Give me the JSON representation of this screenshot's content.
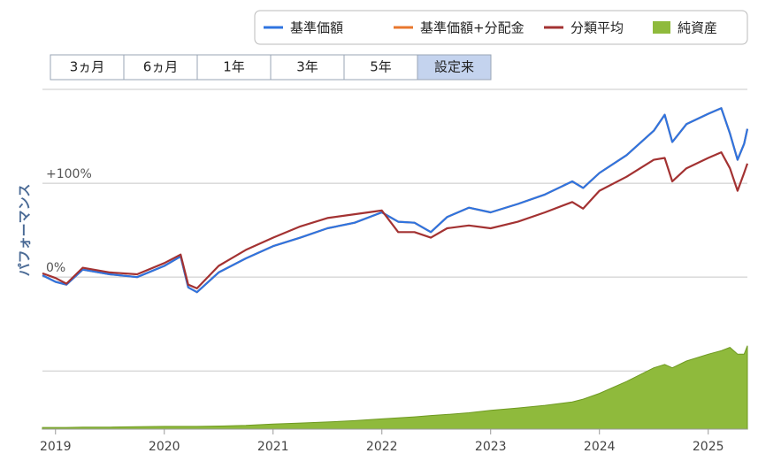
{
  "chart_data": {
    "type": "line",
    "y_axis_label": "パフォーマンス",
    "range_buttons": [
      "3ヵ月",
      "6ヵ月",
      "1年",
      "3年",
      "5年",
      "設定来"
    ],
    "selected_range_index": 5,
    "x": [
      2018.88,
      2019.0,
      2019.1,
      2019.25,
      2019.5,
      2019.75,
      2020.0,
      2020.15,
      2020.22,
      2020.3,
      2020.5,
      2020.75,
      2021.0,
      2021.25,
      2021.5,
      2021.75,
      2022.0,
      2022.15,
      2022.3,
      2022.45,
      2022.6,
      2022.8,
      2023.0,
      2023.25,
      2023.5,
      2023.75,
      2023.85,
      2024.0,
      2024.25,
      2024.5,
      2024.6,
      2024.67,
      2024.8,
      2025.0,
      2025.12,
      2025.2,
      2025.27,
      2025.33,
      2025.36
    ],
    "xlim": [
      2018.88,
      2025.36
    ],
    "xticks": [
      2019,
      2020,
      2021,
      2022,
      2023,
      2024,
      2025
    ],
    "ylim": [
      -162,
      201
    ],
    "yticks": [
      {
        "value": -100,
        "label": null
      },
      {
        "value": 0,
        "label": "0%"
      },
      {
        "value": 100,
        "label": "+100%"
      },
      {
        "value": 200,
        "label": null
      }
    ],
    "y2lim": [
      0,
      100
    ],
    "grid": true,
    "legend": "top-right",
    "series": [
      {
        "name": "基準価額+分配金",
        "color": "#e8772e",
        "type": "line",
        "values": [
          2,
          -5,
          -8,
          8,
          3,
          0,
          12,
          22,
          -11,
          -16,
          5,
          20,
          33,
          42,
          52,
          58,
          69,
          59,
          58,
          48,
          64,
          74,
          69,
          78,
          88,
          102,
          95,
          111,
          130,
          156,
          173,
          144,
          163,
          174,
          180,
          153,
          125,
          142,
          158
        ]
      },
      {
        "name": "基準価額",
        "color": "#2f74e0",
        "type": "line",
        "values": [
          2,
          -5,
          -8,
          8,
          3,
          0,
          12,
          22,
          -11,
          -16,
          5,
          20,
          33,
          42,
          52,
          58,
          69,
          59,
          58,
          48,
          64,
          74,
          69,
          78,
          88,
          102,
          95,
          111,
          130,
          156,
          173,
          144,
          163,
          174,
          180,
          153,
          125,
          142,
          158
        ]
      },
      {
        "name": "分類平均",
        "color": "#a33232",
        "type": "line",
        "values": [
          4,
          -1,
          -7,
          10,
          5,
          3,
          15,
          24,
          -8,
          -12,
          12,
          29,
          42,
          54,
          63,
          67,
          71,
          48,
          48,
          42,
          52,
          55,
          52,
          59,
          69,
          80,
          73,
          92,
          107,
          125,
          127,
          102,
          116,
          127,
          133,
          116,
          92,
          111,
          121
        ]
      },
      {
        "name": "純資産",
        "color": "#8fba3c",
        "type": "area",
        "axis": "y2",
        "values": [
          0.5,
          0.5,
          0.5,
          0.6,
          0.6,
          0.7,
          0.8,
          0.8,
          0.8,
          0.8,
          0.9,
          1.1,
          1.5,
          1.8,
          2.1,
          2.5,
          3,
          3.3,
          3.6,
          4,
          4.3,
          4.8,
          5.5,
          6.2,
          7,
          8,
          8.8,
          10.5,
          14,
          18,
          19,
          18,
          20,
          22,
          23,
          24,
          22,
          22,
          24.5
        ]
      }
    ],
    "legend_order": [
      1,
      0,
      2,
      3
    ]
  }
}
